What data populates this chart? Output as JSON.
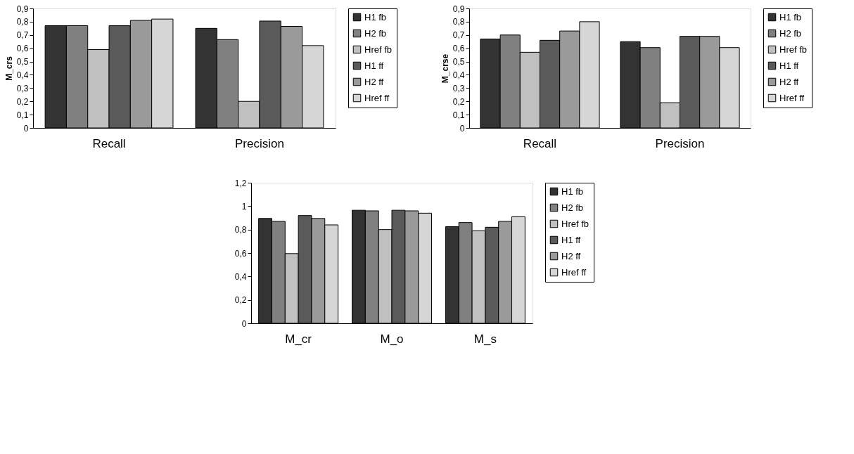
{
  "chart_data": [
    {
      "type": "bar",
      "ylabel": "M_crs",
      "categories": [
        "Recall",
        "Precision"
      ],
      "ylim": [
        0,
        0.9
      ],
      "yticks": [
        0,
        {
          "value": 0.1,
          "label": "0,1"
        },
        {
          "value": 0.2,
          "label": "0,2"
        },
        {
          "value": 0.3,
          "label": "0,3"
        },
        {
          "value": 0.4,
          "label": "0,4"
        },
        {
          "value": 0.5,
          "label": "0,5"
        },
        {
          "value": 0.6,
          "label": "0,6"
        },
        {
          "value": 0.7,
          "label": "0,7"
        },
        {
          "value": 0.8,
          "label": "0,8"
        },
        {
          "value": 0.9,
          "label": "0,9"
        }
      ],
      "grid": false,
      "legend": "right",
      "series": [
        {
          "name": "H1 fb",
          "color": "#333333",
          "values": [
            0.77,
            0.75
          ]
        },
        {
          "name": "H2 fb",
          "color": "#808080",
          "values": [
            0.77,
            0.665
          ]
        },
        {
          "name": "Href fb",
          "color": "#c0c0c0",
          "values": [
            0.59,
            0.2
          ]
        },
        {
          "name": "H1 ff",
          "color": "#5a5a5a",
          "values": [
            0.77,
            0.805
          ]
        },
        {
          "name": "H2 ff",
          "color": "#9a9a9a",
          "values": [
            0.81,
            0.765
          ]
        },
        {
          "name": "Href ff",
          "color": "#d6d6d6",
          "values": [
            0.82,
            0.62
          ]
        }
      ]
    },
    {
      "type": "bar",
      "ylabel": "M_crse",
      "categories": [
        "Recall",
        "Precision"
      ],
      "ylim": [
        0,
        0.9
      ],
      "yticks": [
        0,
        {
          "value": 0.1,
          "label": "0,1"
        },
        {
          "value": 0.2,
          "label": "0,2"
        },
        {
          "value": 0.3,
          "label": "0,3"
        },
        {
          "value": 0.4,
          "label": "0,4"
        },
        {
          "value": 0.5,
          "label": "0,5"
        },
        {
          "value": 0.6,
          "label": "0,6"
        },
        {
          "value": 0.7,
          "label": "0,7"
        },
        {
          "value": 0.8,
          "label": "0,8"
        },
        {
          "value": 0.9,
          "label": "0,9"
        }
      ],
      "grid": false,
      "legend": "right",
      "series": [
        {
          "name": "H1 fb",
          "color": "#333333",
          "values": [
            0.67,
            0.65
          ]
        },
        {
          "name": "H2 fb",
          "color": "#808080",
          "values": [
            0.7,
            0.605
          ]
        },
        {
          "name": "Href fb",
          "color": "#c0c0c0",
          "values": [
            0.57,
            0.19
          ]
        },
        {
          "name": "H1 ff",
          "color": "#5a5a5a",
          "values": [
            0.66,
            0.69
          ]
        },
        {
          "name": "H2 ff",
          "color": "#9a9a9a",
          "values": [
            0.73,
            0.69
          ]
        },
        {
          "name": "Href ff",
          "color": "#d6d6d6",
          "values": [
            0.8,
            0.605
          ]
        }
      ]
    },
    {
      "type": "bar",
      "categories": [
        "M_cr",
        "M_o",
        "M_s"
      ],
      "ylim": [
        0,
        1.2
      ],
      "yticks": [
        0,
        {
          "value": 0.2,
          "label": "0,2"
        },
        {
          "value": 0.4,
          "label": "0,4"
        },
        {
          "value": 0.6,
          "label": "0,6"
        },
        {
          "value": 0.8,
          "label": "0,8"
        },
        1,
        {
          "value": 1.2,
          "label": "1,2"
        }
      ],
      "grid": false,
      "legend": "right",
      "series": [
        {
          "name": "H1 fb",
          "color": "#333333",
          "values": [
            0.895,
            0.965,
            0.825
          ]
        },
        {
          "name": "H2 fb",
          "color": "#808080",
          "values": [
            0.87,
            0.96,
            0.86
          ]
        },
        {
          "name": "Href fb",
          "color": "#c0c0c0",
          "values": [
            0.595,
            0.8,
            0.79
          ]
        },
        {
          "name": "H1 ff",
          "color": "#5a5a5a",
          "values": [
            0.92,
            0.965,
            0.82
          ]
        },
        {
          "name": "H2 ff",
          "color": "#9a9a9a",
          "values": [
            0.895,
            0.96,
            0.87
          ]
        },
        {
          "name": "Href ff",
          "color": "#d6d6d6",
          "values": [
            0.84,
            0.94,
            0.91
          ]
        }
      ]
    }
  ]
}
